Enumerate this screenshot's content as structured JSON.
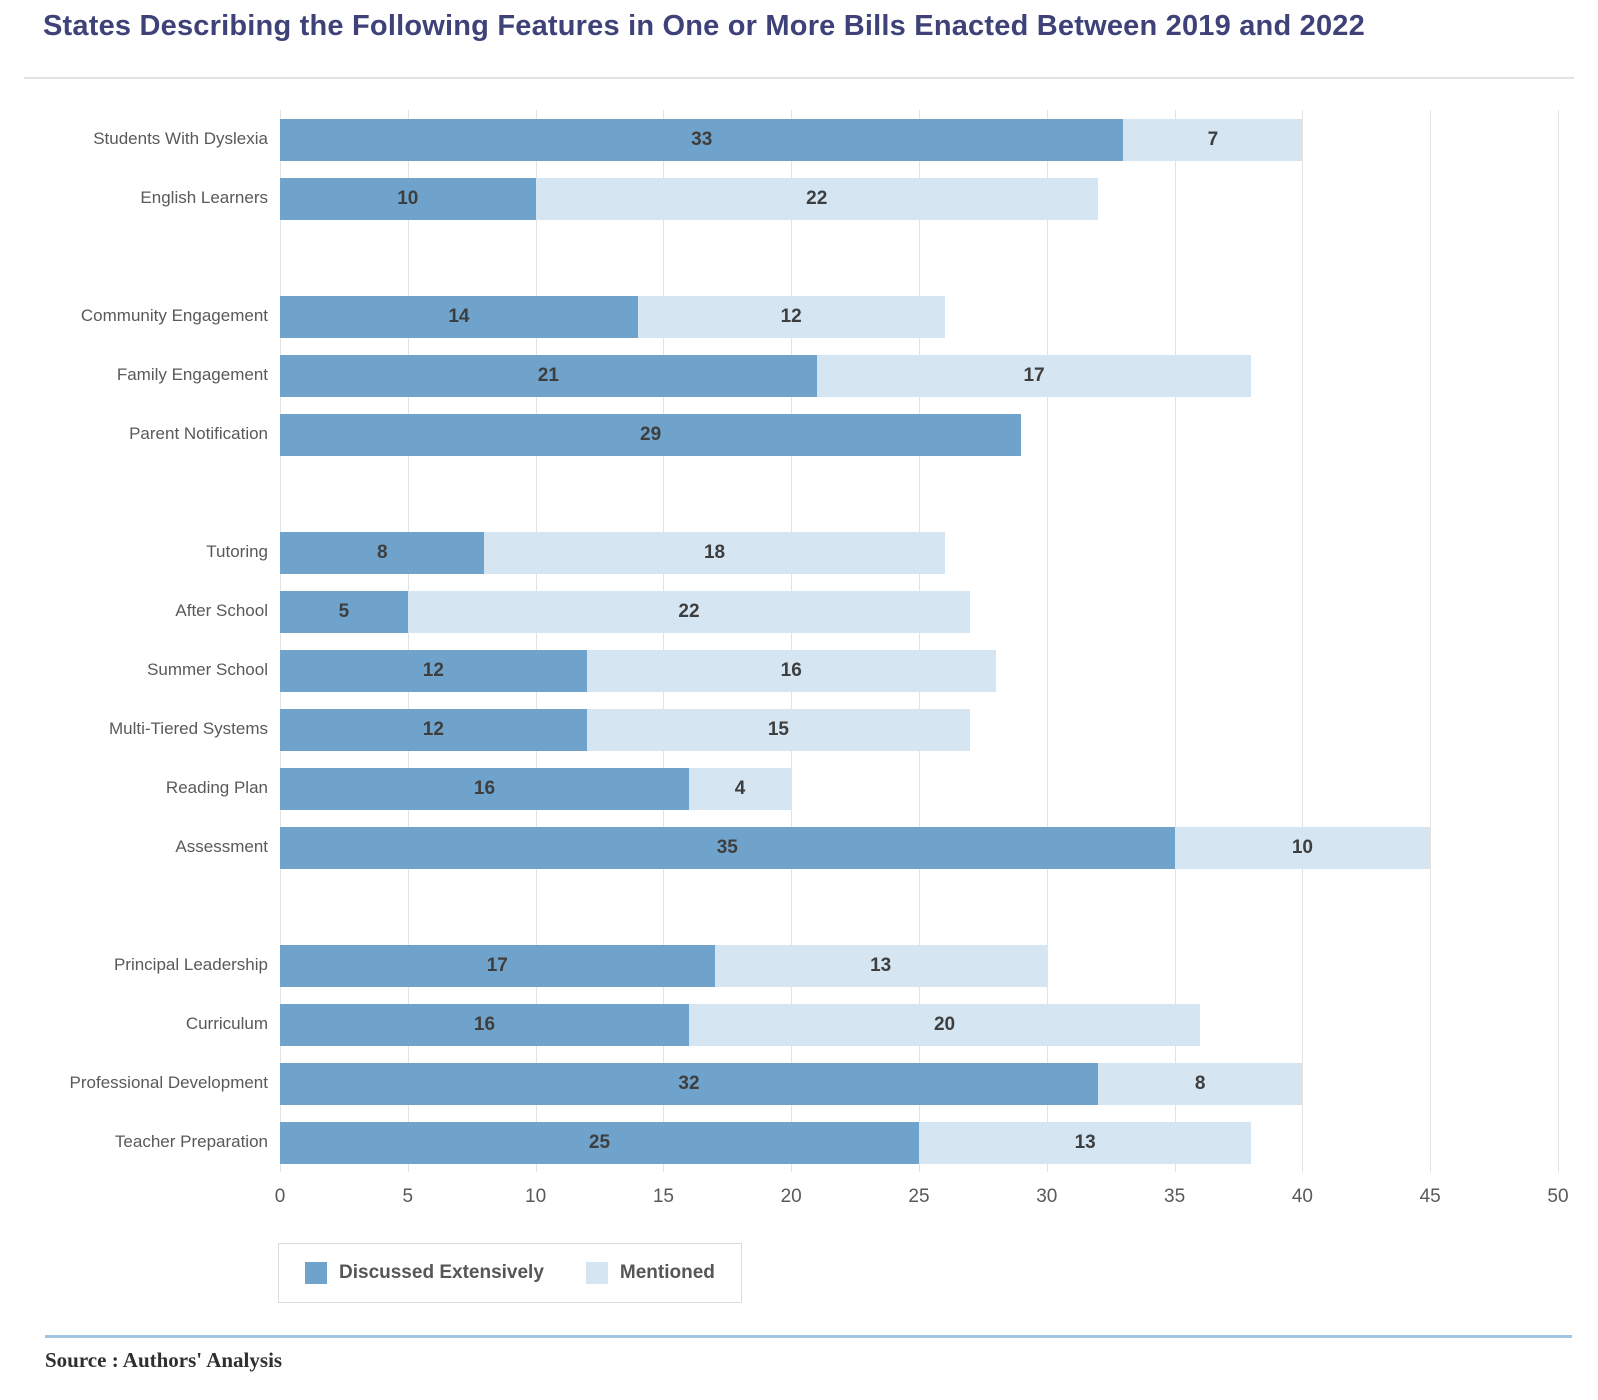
{
  "page": {
    "title": "States Describing the Following Features in One or More Bills Enacted Between 2019 and 2022",
    "source_note": "Source : Authors' Analysis"
  },
  "colors": {
    "title": "#3e4278",
    "discussed": "#6fa3cb",
    "mentioned": "#d5e5f1",
    "value_label": "#3e3e3e",
    "axis_label": "#58595b",
    "gridline": "#e3e3e3",
    "top_divider": "#e2e2e2",
    "bottom_divider": "#a4c5e2",
    "legend_border": "#dcdcdc"
  },
  "legend": {
    "items": [
      {
        "label": "Discussed Extensively",
        "color": "#6fa3cb"
      },
      {
        "label": "Mentioned",
        "color": "#d5e5f1"
      }
    ]
  },
  "chart_data": {
    "type": "bar",
    "orientation": "horizontal",
    "stacked": true,
    "title": "States Describing the Following Features in One or More Bills Enacted Between 2019 and 2022",
    "xlabel": "",
    "ylabel": "",
    "xlim": [
      0,
      50
    ],
    "x_ticks": [
      0,
      5,
      10,
      15,
      20,
      25,
      30,
      35,
      40,
      45,
      50
    ],
    "grid": true,
    "legend_position": "bottom-left",
    "categories": [
      "Students With Dyslexia",
      "English Learners",
      "Community Engagement",
      "Family Engagement",
      "Parent Notification",
      "Tutoring",
      "After School",
      "Summer School",
      "Multi-Tiered Systems",
      "Reading Plan",
      "Assessment",
      "Principal Leadership",
      "Curriculum",
      "Professional Development",
      "Teacher Preparation"
    ],
    "series": [
      {
        "name": "Discussed Extensively",
        "color": "#6fa3cb",
        "values": [
          33,
          10,
          14,
          21,
          29,
          8,
          5,
          12,
          12,
          16,
          35,
          17,
          16,
          32,
          25
        ]
      },
      {
        "name": "Mentioned",
        "color": "#d5e5f1",
        "values": [
          7,
          22,
          12,
          17,
          0,
          18,
          22,
          16,
          15,
          4,
          10,
          13,
          20,
          8,
          13
        ]
      }
    ],
    "rows": [
      {
        "label": "Students With Dyslexia",
        "discussed": 33,
        "mentioned": 7
      },
      {
        "label": "English Learners",
        "discussed": 10,
        "mentioned": 22
      },
      {
        "spacer": true
      },
      {
        "label": "Community Engagement",
        "discussed": 14,
        "mentioned": 12
      },
      {
        "label": "Family Engagement",
        "discussed": 21,
        "mentioned": 17
      },
      {
        "label": "Parent Notification",
        "discussed": 29,
        "mentioned": 0
      },
      {
        "spacer": true
      },
      {
        "label": "Tutoring",
        "discussed": 8,
        "mentioned": 18
      },
      {
        "label": "After School",
        "discussed": 5,
        "mentioned": 22
      },
      {
        "label": "Summer School",
        "discussed": 12,
        "mentioned": 16
      },
      {
        "label": "Multi-Tiered Systems",
        "discussed": 12,
        "mentioned": 15
      },
      {
        "label": "Reading Plan",
        "discussed": 16,
        "mentioned": 4
      },
      {
        "label": "Assessment",
        "discussed": 35,
        "mentioned": 10
      },
      {
        "spacer": true
      },
      {
        "label": "Principal Leadership",
        "discussed": 17,
        "mentioned": 13
      },
      {
        "label": "Curriculum",
        "discussed": 16,
        "mentioned": 20
      },
      {
        "label": "Professional Development",
        "discussed": 32,
        "mentioned": 8
      },
      {
        "label": "Teacher Preparation",
        "discussed": 25,
        "mentioned": 13
      }
    ]
  }
}
